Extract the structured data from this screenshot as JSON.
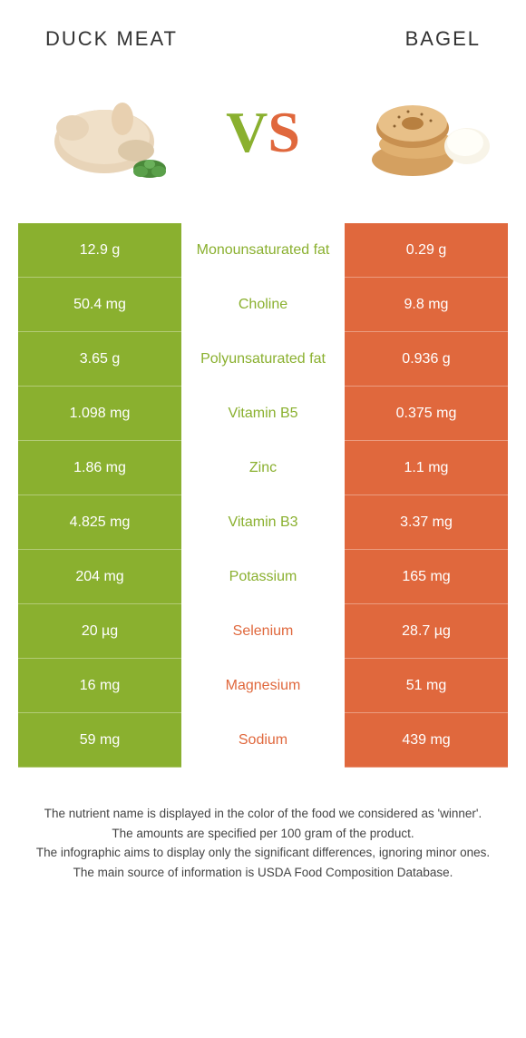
{
  "header": {
    "left_title": "Duck meat",
    "right_title": "Bagel"
  },
  "vs": {
    "v": "V",
    "s": "S"
  },
  "colors": {
    "left_bg": "#8ab02f",
    "right_bg": "#e0683d",
    "left_text": "#8ab02f",
    "right_text": "#e0683d",
    "cell_text": "#ffffff",
    "mid_bg": "#ffffff"
  },
  "table": {
    "rows": [
      {
        "left": "12.9 g",
        "mid": "Monounsaturated fat",
        "right": "0.29 g",
        "winner": "left"
      },
      {
        "left": "50.4 mg",
        "mid": "Choline",
        "right": "9.8 mg",
        "winner": "left"
      },
      {
        "left": "3.65 g",
        "mid": "Polyunsaturated fat",
        "right": "0.936 g",
        "winner": "left"
      },
      {
        "left": "1.098 mg",
        "mid": "Vitamin B5",
        "right": "0.375 mg",
        "winner": "left"
      },
      {
        "left": "1.86 mg",
        "mid": "Zinc",
        "right": "1.1 mg",
        "winner": "left"
      },
      {
        "left": "4.825 mg",
        "mid": "Vitamin B3",
        "right": "3.37 mg",
        "winner": "left"
      },
      {
        "left": "204 mg",
        "mid": "Potassium",
        "right": "165 mg",
        "winner": "left"
      },
      {
        "left": "20 µg",
        "mid": "Selenium",
        "right": "28.7 µg",
        "winner": "right"
      },
      {
        "left": "16 mg",
        "mid": "Magnesium",
        "right": "51 mg",
        "winner": "right"
      },
      {
        "left": "59 mg",
        "mid": "Sodium",
        "right": "439 mg",
        "winner": "right"
      }
    ]
  },
  "footnotes": [
    "The nutrient name is displayed in the color of the food we considered as 'winner'.",
    "The amounts are specified per 100 gram of the product.",
    "The infographic aims to display only the significant differences, ignoring minor ones.",
    "The main source of information is USDA Food Composition Database."
  ]
}
